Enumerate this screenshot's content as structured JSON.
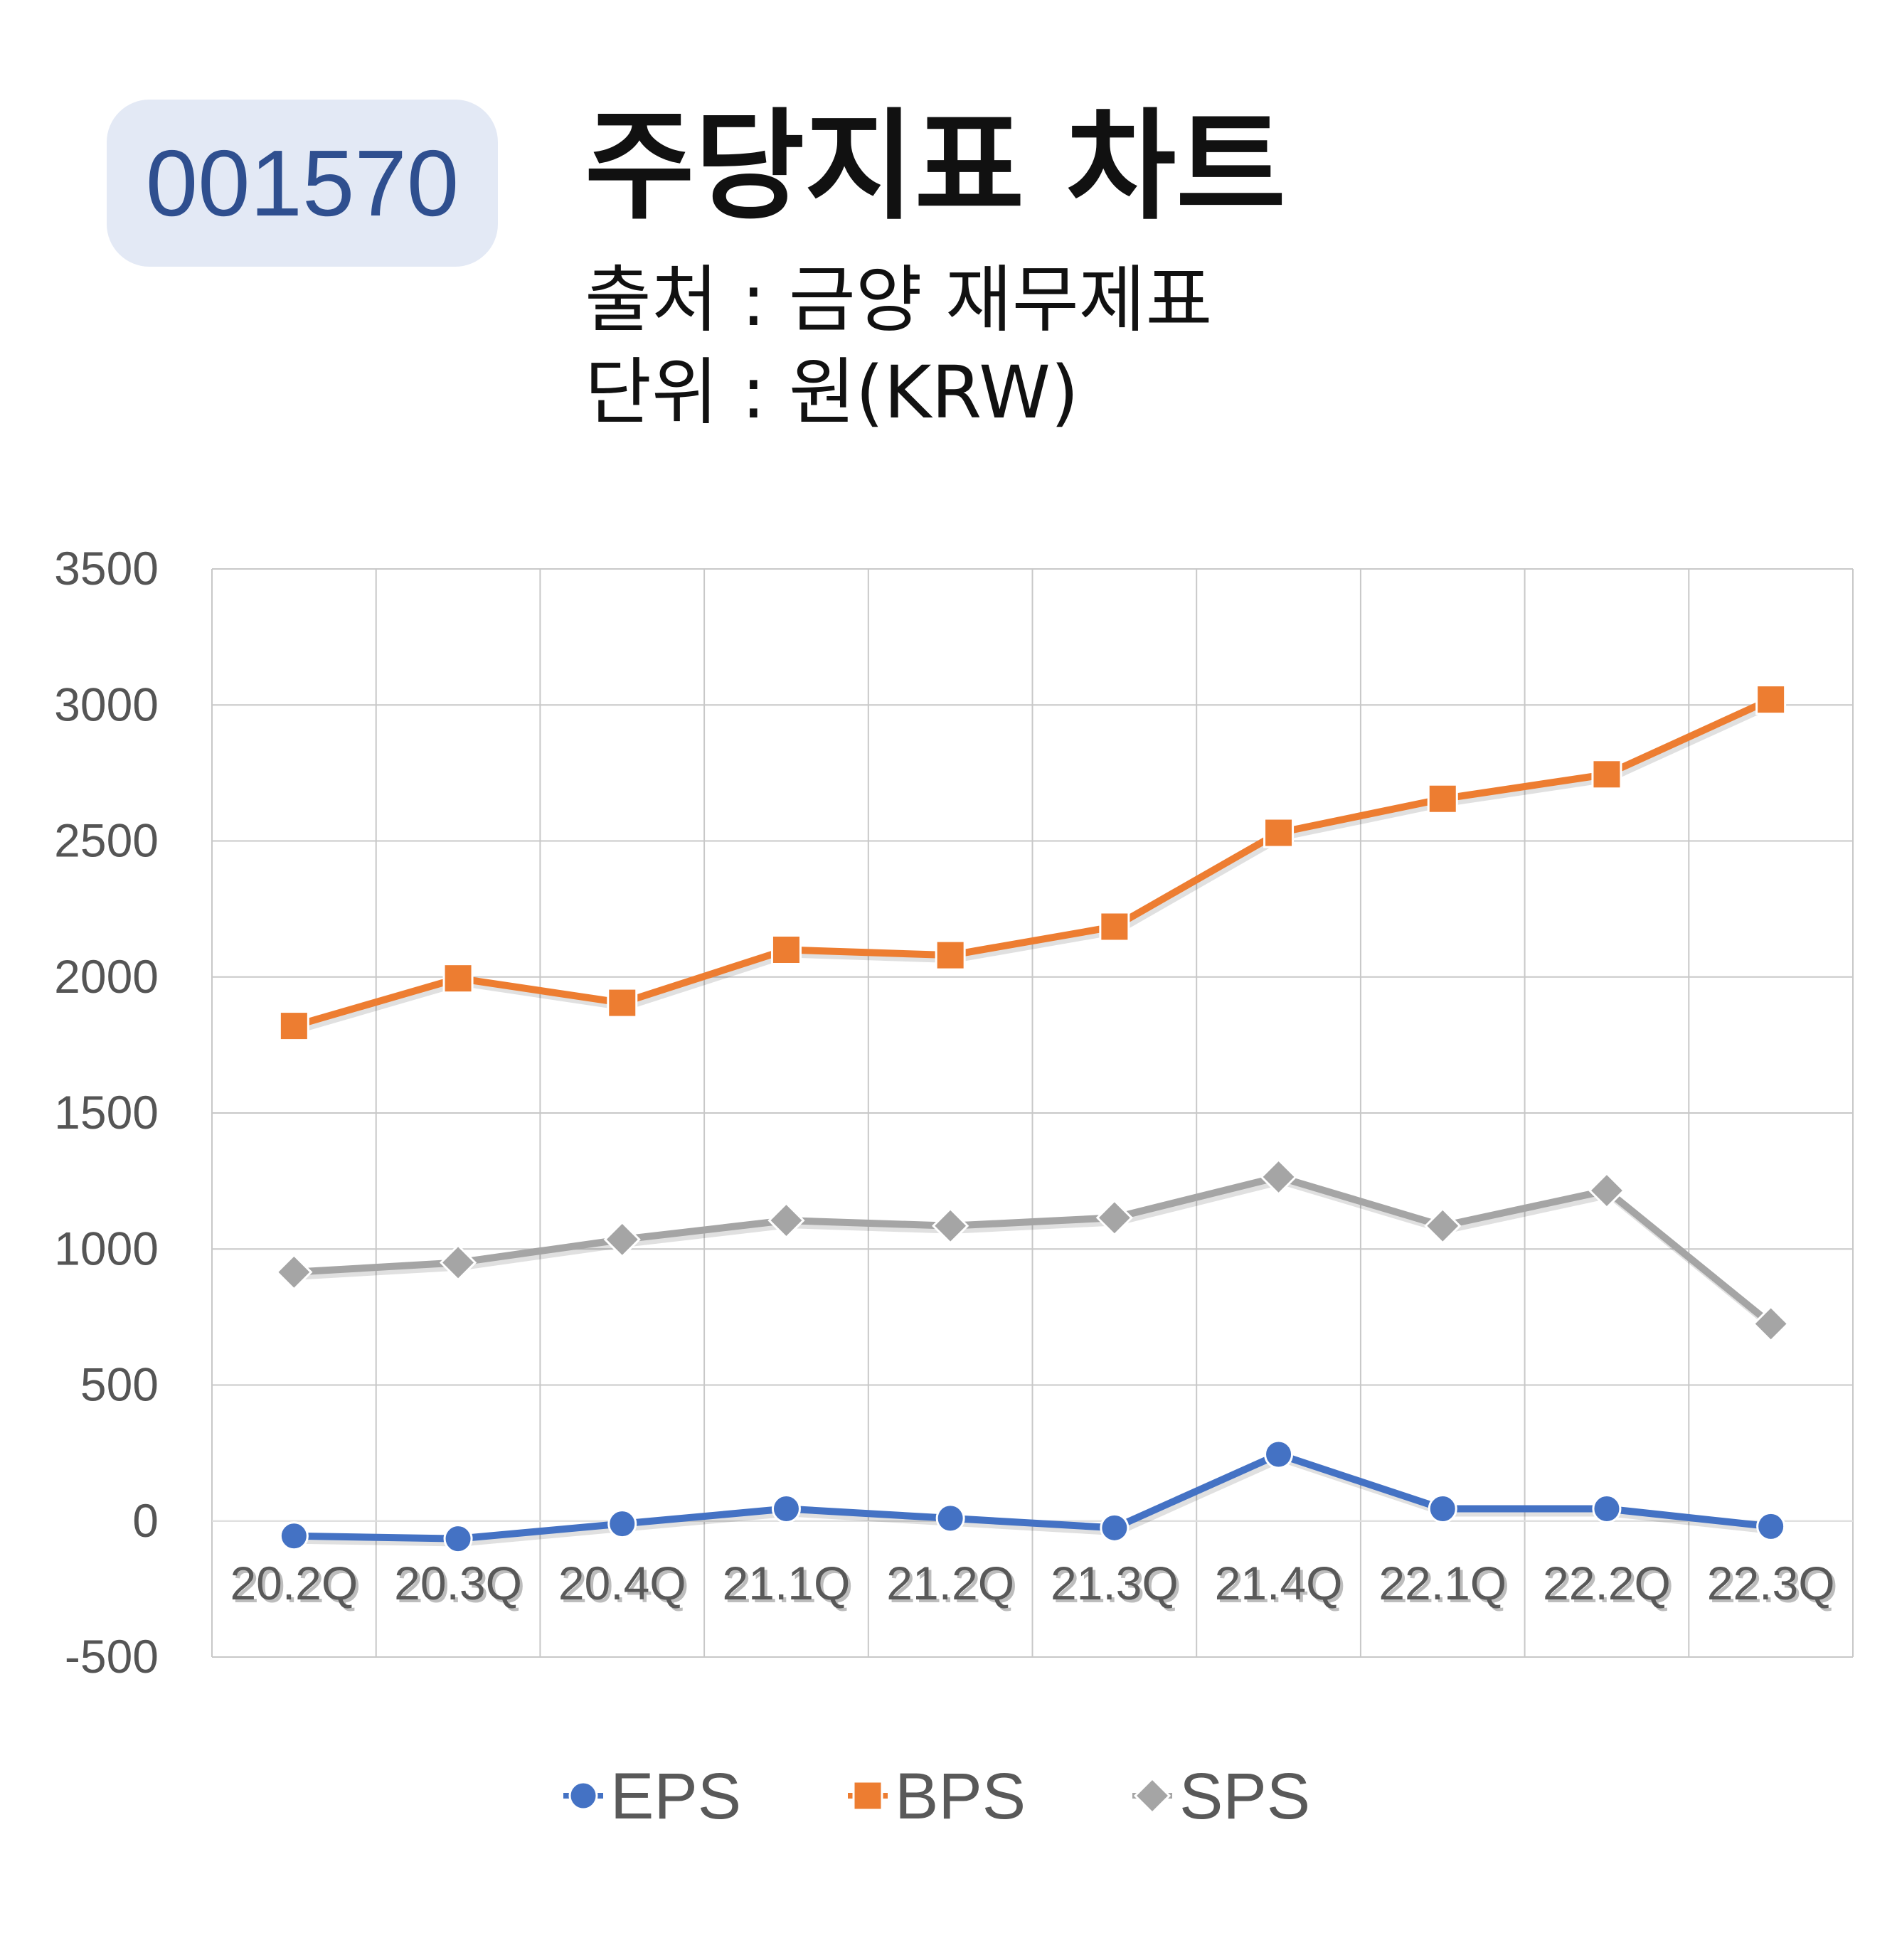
{
  "header": {
    "code": "001570",
    "title": "주당지표 차트",
    "source": "출처 : 금양 재무제표",
    "unit": "단위 : 원(KRW)"
  },
  "chart_data": {
    "type": "line",
    "categories": [
      "20.2Q",
      "20.3Q",
      "20.4Q",
      "21.1Q",
      "21.2Q",
      "21.3Q",
      "21.4Q",
      "22.1Q",
      "22.2Q",
      "22.3Q"
    ],
    "series": [
      {
        "name": "EPS",
        "color": "#4472c4",
        "marker": "circle",
        "values": [
          -55,
          -65,
          -10,
          45,
          10,
          -25,
          245,
          45,
          45,
          -20
        ]
      },
      {
        "name": "BPS",
        "color": "#ed7d31",
        "marker": "square",
        "values": [
          1820,
          1995,
          1905,
          2100,
          2080,
          2185,
          2530,
          2655,
          2745,
          3020
        ]
      },
      {
        "name": "SPS",
        "color": "#a5a5a5",
        "marker": "diamond",
        "values": [
          915,
          950,
          1035,
          1105,
          1085,
          1115,
          1265,
          1085,
          1215,
          725
        ]
      }
    ],
    "ylim": [
      -500,
      3500
    ],
    "yticks": [
      "3500",
      "3000",
      "2500",
      "2000",
      "1500",
      "1000",
      "500",
      "0",
      "-500"
    ],
    "grid": true,
    "legend": "bottom"
  }
}
